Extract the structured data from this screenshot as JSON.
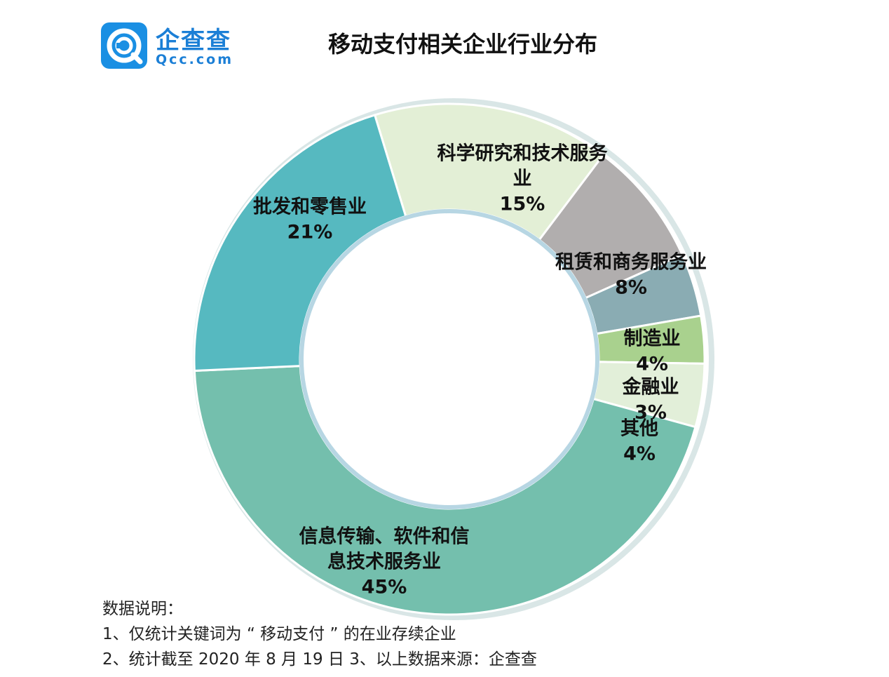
{
  "logo": {
    "name": "企查查",
    "domain": "Qcc.com"
  },
  "title": "移动支付相关企业行业分布",
  "chart_data": {
    "type": "pie",
    "variant": "donut",
    "title": "移动支付相关企业行业分布",
    "unit": "%",
    "slices": [
      {
        "label": "科学研究和技术服务业",
        "label_lines": [
          "科学研究和技术服务",
          "业"
        ],
        "value": 15,
        "value_label": "15%",
        "color": "#e3efd6"
      },
      {
        "label": "租赁和商务服务业",
        "label_lines": [
          "租赁和商务服务业"
        ],
        "value": 8,
        "value_label": "8%",
        "color": "#b1aeae"
      },
      {
        "label": "制造业",
        "label_lines": [
          "制造业"
        ],
        "value": 4,
        "value_label": "4%",
        "color": "#8aacb3"
      },
      {
        "label": "金融业",
        "label_lines": [
          "金融业"
        ],
        "value": 3,
        "value_label": "3%",
        "color": "#a9d18e"
      },
      {
        "label": "其他",
        "label_lines": [
          "其他"
        ],
        "value": 4,
        "value_label": "4%",
        "color": "#e2efd9"
      },
      {
        "label": "信息传输、软件和信息技术服务业",
        "label_lines": [
          "信息传输、软件和信",
          "息技术服务业"
        ],
        "value": 45,
        "value_label": "45%",
        "color": "#74bfad"
      },
      {
        "label": "批发和零售业",
        "label_lines": [
          "批发和零售业"
        ],
        "value": 21,
        "value_label": "21%",
        "color": "#56b9c0"
      }
    ]
  },
  "notes": {
    "heading": "数据说明：",
    "line1": "1、仅统计关键词为 “ 移动支付 ” 的在业存续企业",
    "line2": "2、统计截至 2020 年 8 月 19 日   3、以上数据来源：企查查"
  }
}
